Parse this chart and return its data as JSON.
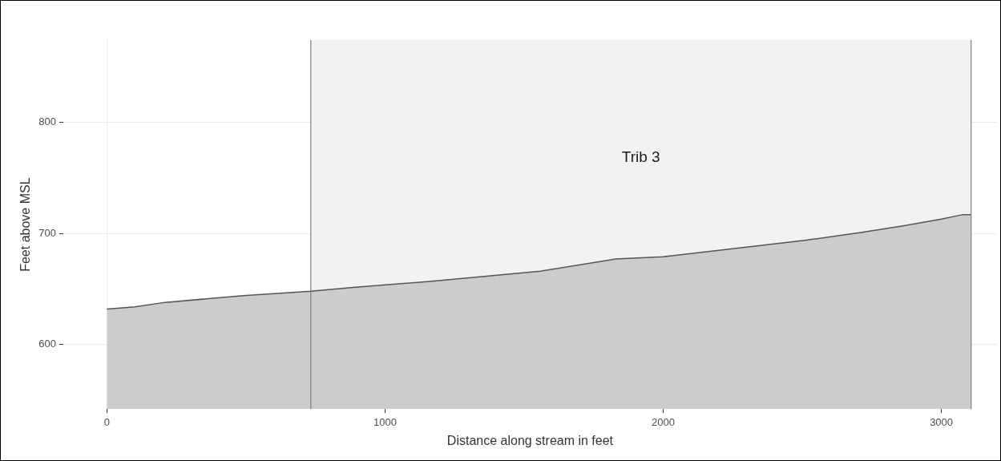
{
  "chart_data": {
    "type": "area",
    "xlabel": "Distance along stream in feet",
    "ylabel": "Feet above MSL",
    "x": [
      0,
      100,
      209,
      491,
      733,
      885,
      1170,
      1558,
      1829,
      2000,
      2137,
      2311,
      2515,
      2715,
      2866,
      3000,
      3078,
      3107
    ],
    "series": [
      {
        "color": "#555555",
        "values": [
          632,
          634,
          638,
          644,
          648,
          651.5,
          657,
          666,
          677,
          679,
          683,
          688,
          694,
          701,
          707,
          713,
          717,
          717
        ]
      }
    ],
    "xlim": [
      -157,
      3200
    ],
    "xticks": [
      0,
      1000,
      2000,
      3000
    ],
    "ylim": [
      542,
      874
    ],
    "yticks": [
      600,
      700,
      800
    ],
    "bands": [
      {
        "axis": "x",
        "from": 733,
        "to": 3107,
        "label": "Trib 3",
        "color": "#f2f2f2"
      }
    ],
    "ref_lines": [
      {
        "axis": "x",
        "value": 733,
        "color": "#7f7f7f"
      },
      {
        "axis": "x",
        "value": 3107,
        "color": "#7f7f7f"
      }
    ],
    "grid": true,
    "legend": false,
    "marker": "none",
    "line_style": "solid"
  }
}
